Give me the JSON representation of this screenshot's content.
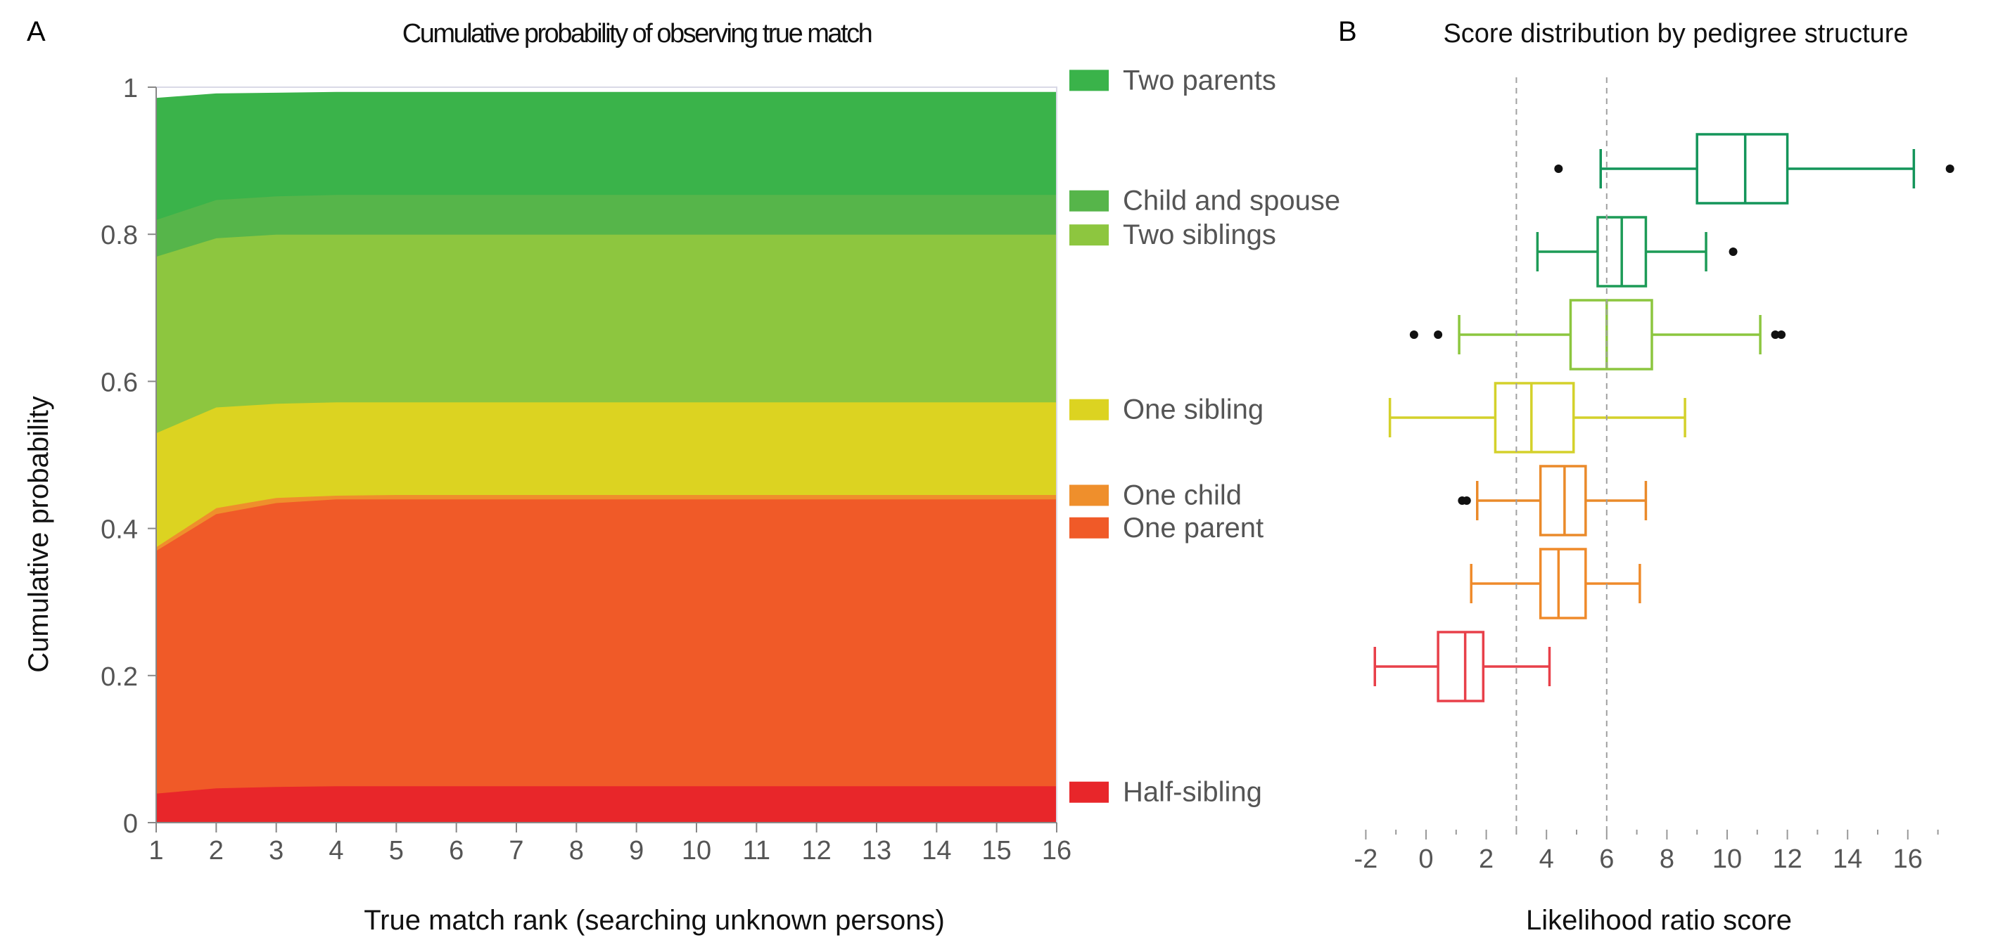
{
  "chart_data": [
    {
      "type": "area",
      "panel": "A",
      "title": "Cumulative probability of observing true match",
      "xlabel": "True match rank (searching unknown persons)",
      "ylabel": "Cumulative probability",
      "xlim": [
        1,
        16
      ],
      "ylim": [
        0,
        1
      ],
      "x": [
        1,
        2,
        3,
        4,
        5,
        6,
        7,
        8,
        9,
        10,
        11,
        12,
        13,
        14,
        15,
        16
      ],
      "xticks": [
        "1",
        "2",
        "3",
        "4",
        "5",
        "6",
        "7",
        "8",
        "9",
        "10",
        "11",
        "12",
        "13",
        "14",
        "15",
        "16"
      ],
      "yticks": [
        "0",
        "0.2",
        "0.4",
        "0.6",
        "0.8",
        "1"
      ],
      "yticks_values": [
        0,
        0.2,
        0.4,
        0.6,
        0.8,
        1.0
      ],
      "grid": false,
      "legend_position": "right",
      "series": [
        {
          "name": "Half-sibling",
          "color": "#E8262A",
          "cumulative": [
            0.04,
            0.047,
            0.049,
            0.05,
            0.05,
            0.05,
            0.05,
            0.05,
            0.05,
            0.05,
            0.05,
            0.05,
            0.05,
            0.05,
            0.05,
            0.05
          ]
        },
        {
          "name": "One parent",
          "color": "#F05A28",
          "cumulative": [
            0.37,
            0.42,
            0.435,
            0.44,
            0.44,
            0.44,
            0.44,
            0.44,
            0.44,
            0.44,
            0.44,
            0.44,
            0.44,
            0.44,
            0.44,
            0.44
          ]
        },
        {
          "name": "One child",
          "color": "#EF8F2C",
          "cumulative": [
            0.375,
            0.428,
            0.442,
            0.445,
            0.446,
            0.446,
            0.446,
            0.446,
            0.446,
            0.446,
            0.446,
            0.446,
            0.446,
            0.446,
            0.446,
            0.446
          ]
        },
        {
          "name": "One sibling",
          "color": "#DCD321",
          "cumulative": [
            0.53,
            0.565,
            0.57,
            0.572,
            0.572,
            0.572,
            0.572,
            0.572,
            0.572,
            0.572,
            0.572,
            0.572,
            0.572,
            0.572,
            0.572,
            0.572
          ]
        },
        {
          "name": "Two siblings",
          "color": "#8DC63F",
          "cumulative": [
            0.77,
            0.795,
            0.8,
            0.8,
            0.8,
            0.8,
            0.8,
            0.8,
            0.8,
            0.8,
            0.8,
            0.8,
            0.8,
            0.8,
            0.8,
            0.8
          ]
        },
        {
          "name": "Child and spouse",
          "color": "#56B54A",
          "cumulative": [
            0.82,
            0.847,
            0.852,
            0.854,
            0.854,
            0.854,
            0.854,
            0.854,
            0.854,
            0.854,
            0.854,
            0.854,
            0.854,
            0.854,
            0.854,
            0.854
          ]
        },
        {
          "name": "Two parents",
          "color": "#3AB34A",
          "cumulative": [
            0.985,
            0.991,
            0.992,
            0.993,
            0.993,
            0.993,
            0.993,
            0.993,
            0.993,
            0.993,
            0.993,
            0.993,
            0.993,
            0.993,
            0.993,
            0.993
          ]
        }
      ],
      "legend_order": [
        "Two parents",
        "Child and spouse",
        "Two siblings",
        "One sibling",
        "One child",
        "One parent",
        "Half-sibling"
      ]
    },
    {
      "type": "boxplot",
      "panel": "B",
      "title": "Score distribution by pedigree structure",
      "xlabel": "Likelihood ratio score",
      "ylabel": "",
      "xlim": [
        -2.5,
        17.5
      ],
      "xticks": [
        "-2",
        "0",
        "2",
        "4",
        "6",
        "8",
        "10",
        "12",
        "14",
        "16"
      ],
      "xticks_values": [
        -2,
        0,
        2,
        4,
        6,
        8,
        10,
        12,
        14,
        16
      ],
      "reference_lines": [
        3,
        6
      ],
      "grid": false,
      "boxes": [
        {
          "color": "#14955A",
          "whisker_low": 5.8,
          "q1": 9.0,
          "median": 10.6,
          "q3": 12.0,
          "whisker_high": 16.2,
          "outliers": [
            4.4,
            17.4
          ]
        },
        {
          "color": "#1D9B57",
          "whisker_low": 3.7,
          "q1": 5.7,
          "median": 6.5,
          "q3": 7.3,
          "whisker_high": 9.3,
          "outliers": [
            10.2
          ]
        },
        {
          "color": "#8CC63F",
          "whisker_low": 1.1,
          "q1": 4.8,
          "median": 6.0,
          "q3": 7.5,
          "whisker_high": 11.1,
          "outliers": [
            -0.4,
            0.4,
            11.6,
            11.8
          ]
        },
        {
          "color": "#D4D12B",
          "whisker_low": -1.2,
          "q1": 2.3,
          "median": 3.5,
          "q3": 4.9,
          "whisker_high": 8.6,
          "outliers": []
        },
        {
          "color": "#EA8A2A",
          "whisker_low": 1.7,
          "q1": 3.8,
          "median": 4.6,
          "q3": 5.3,
          "whisker_high": 7.3,
          "outliers": [
            1.2,
            1.35
          ]
        },
        {
          "color": "#EF8A2A",
          "whisker_low": 1.5,
          "q1": 3.8,
          "median": 4.4,
          "q3": 5.3,
          "whisker_high": 7.1,
          "outliers": []
        },
        {
          "color": "#E8404A",
          "whisker_low": -1.7,
          "q1": 0.4,
          "median": 1.3,
          "q3": 1.9,
          "whisker_high": 4.1,
          "outliers": []
        }
      ]
    }
  ],
  "panel_labels": {
    "a": "A",
    "b": "B"
  }
}
